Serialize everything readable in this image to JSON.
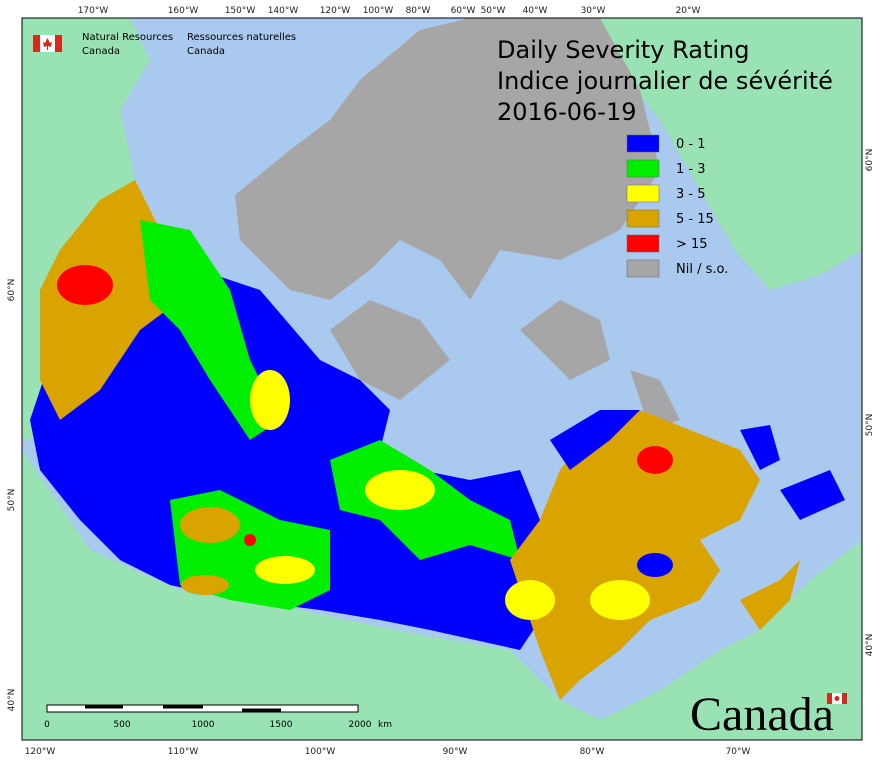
{
  "agency": {
    "en_line1": "Natural Resources",
    "en_line2": "Canada",
    "fr_line1": "Ressources naturelles",
    "fr_line2": "Canada"
  },
  "title": {
    "en": "Daily Severity Rating",
    "fr": "Indice journalier de sévérité",
    "date": "2016-06-19"
  },
  "legend": [
    {
      "label": "0 - 1",
      "color": "#0000ff"
    },
    {
      "label": "1 - 3",
      "color": "#00ee00"
    },
    {
      "label": "3 - 5",
      "color": "#ffff00"
    },
    {
      "label": "5 - 15",
      "color": "#d9a300"
    },
    {
      "label": "> 15",
      "color": "#ff0000"
    },
    {
      "label": "Nil / s.o.",
      "color": "#a6a6a6"
    }
  ],
  "top_labels": [
    "170°W",
    "160°W",
    "150°W",
    "140°W",
    "120°W",
    "100°W",
    "80°W",
    "60°W",
    "50°W",
    "40°W",
    "30°W",
    "20°W"
  ],
  "bottom_labels": [
    "120°W",
    "110°W",
    "100°W",
    "90°W",
    "80°W",
    "70°W"
  ],
  "left_labels": [
    "60°N",
    "50°N",
    "40°N"
  ],
  "right_labels": [
    "60°N",
    "50°N",
    "40°N"
  ],
  "scale_bar": {
    "ticks": [
      "0",
      "500",
      "1000",
      "1500",
      "2000"
    ],
    "unit": "km"
  },
  "wordmark": "Canada"
}
